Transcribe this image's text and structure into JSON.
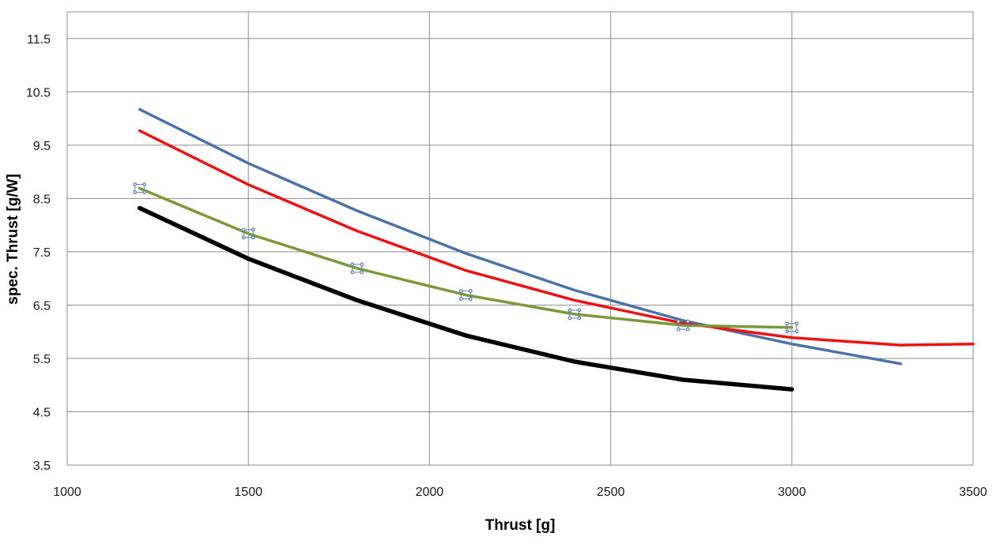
{
  "chart_data": {
    "type": "line",
    "title": "",
    "xlabel": "Thrust  [g]",
    "ylabel": "spec. Thrust [g/W]",
    "xlim": [
      1000,
      3500
    ],
    "ylim": [
      3.5,
      12.0
    ],
    "x_ticks": [
      1000,
      1500,
      2000,
      2500,
      3000,
      3500
    ],
    "y_ticks": [
      3.5,
      4.5,
      5.5,
      6.5,
      7.5,
      8.5,
      9.5,
      10.5,
      11.5
    ],
    "x_tick_labels": [
      "1000",
      "1500",
      "2000",
      "2500",
      "3000",
      "3500"
    ],
    "y_tick_labels": [
      "3.5",
      "4.5",
      "5.5",
      "6.5",
      "7.5",
      "8.5",
      "9.5",
      "10.5",
      "11.5"
    ],
    "grid": true,
    "legend": "none",
    "series": [
      {
        "name": "blue",
        "color": "#4a72a8",
        "width": 3.5,
        "x": [
          1200,
          1500,
          1800,
          2100,
          2400,
          2700,
          3000,
          3300
        ],
        "values": [
          10.17,
          9.16,
          8.27,
          7.47,
          6.78,
          6.21,
          5.77,
          5.4
        ],
        "markers": false
      },
      {
        "name": "red",
        "color": "#ee1111",
        "width": 3.5,
        "x": [
          1200,
          1500,
          1800,
          2100,
          2400,
          2700,
          3000,
          3300,
          3500
        ],
        "values": [
          9.77,
          8.76,
          7.89,
          7.15,
          6.59,
          6.16,
          5.89,
          5.75,
          5.77
        ],
        "markers": false
      },
      {
        "name": "green",
        "color": "#7a9a3a",
        "width": 3.5,
        "x": [
          1200,
          1500,
          1800,
          2100,
          2400,
          2700,
          3000
        ],
        "values": [
          8.69,
          7.84,
          7.19,
          6.69,
          6.33,
          6.12,
          6.08
        ],
        "markers": true
      },
      {
        "name": "black",
        "color": "#000000",
        "width": 5.5,
        "x": [
          1200,
          1500,
          1800,
          2100,
          2400,
          2700,
          3000
        ],
        "values": [
          8.32,
          7.37,
          6.59,
          5.93,
          5.44,
          5.1,
          4.92
        ],
        "markers": false
      }
    ]
  }
}
